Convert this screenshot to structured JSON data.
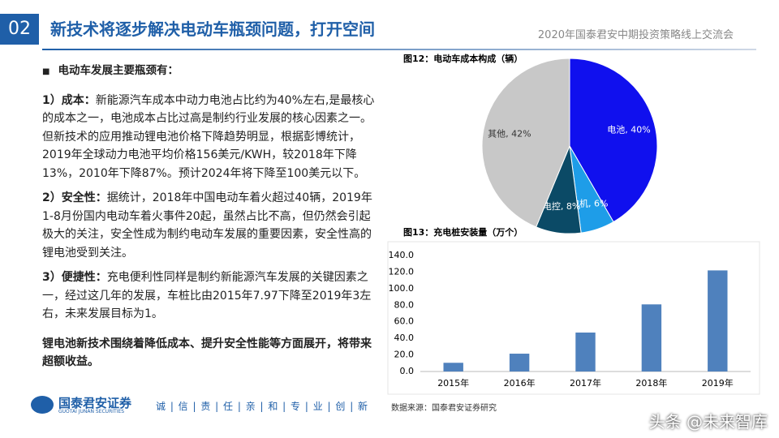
{
  "header": {
    "number": "02",
    "title": "新技术将逐步解决电动车瓶颈问题，打开空间",
    "event": "2020年国泰君安中期投资策略线上交流会"
  },
  "body": {
    "heading": "电动车发展主要瓶颈有：",
    "points": [
      {
        "lead": "1）成本：",
        "text": "新能源汽车成本中动力电池占比约为40%左右,是最核心的成本之一，电池成本占比过高是制约行业发展的核心因素之一。但新技术的应用推动锂电池价格下降趋势明显，根据彭博统计，2019年全球动力电池平均价格156美元/KWH，较2018年下降13%，2010年下降87%。预计2024年将下降至100美元以下。"
      },
      {
        "lead": "2）安全性：",
        "text": "据统计，2018年中国电动车着火超过40辆，2019年1-8月份国内电动车着火事件20起，虽然占比不高，但仍然会引起极大的关注，安全性成为制约电动车发展的重要因素，安全性高的锂电池受到关注。"
      },
      {
        "lead": "3）便捷性：",
        "text": "充电便利性同样是制约新能源汽车发展的关键因素之一，经过这几年的发展，车桩比由2015年7.97下降至2019年3左右，未来发展目标为1。"
      }
    ],
    "conclusion": "锂电池新技术围绕着降低成本、提升安全性能等方面展开，将带来超额收益。"
  },
  "chart_data": [
    {
      "type": "pie",
      "title": "图12：电动车成本构成（辆）",
      "values": [
        40,
        6,
        8,
        42
      ],
      "value_labels": [
        "电池, 40%",
        "电机, 6%",
        "电控, 8%",
        "其他, 42%"
      ],
      "colors": [
        "#1010ee",
        "#1e9de8",
        "#0b4a66",
        "#c8c8c8"
      ]
    },
    {
      "type": "bar",
      "title": "图13：充电桩安装量（万个）",
      "categories": [
        "2015年",
        "2016年",
        "2017年",
        "2018年",
        "2019年"
      ],
      "values": [
        10.5,
        21.5,
        47,
        81,
        122
      ],
      "color": "#4f81bd",
      "ylim": [
        0,
        140
      ],
      "yticks": [
        {
          "value": 0,
          "label": "0.0"
        },
        {
          "value": 20,
          "label": "20.0"
        },
        {
          "value": 40,
          "label": "40.0"
        },
        {
          "value": 60,
          "label": "60.0"
        },
        {
          "value": 80,
          "label": "80.0"
        },
        {
          "value": 100,
          "label": "100.0"
        },
        {
          "value": 120,
          "label": "120.0"
        },
        {
          "value": 140,
          "label": "140.0"
        }
      ],
      "grid": false
    }
  ],
  "source": "数据来源：国泰君安证券研究",
  "footer": {
    "company": "国泰君安证券",
    "company_en": "GUOTAI JUNAN SECURITIES",
    "motto": "诚 | 信 | 责 | 任 | 亲 | 和 | 专 | 业 | 创 | 新"
  },
  "watermark": "头条 @未来智库"
}
